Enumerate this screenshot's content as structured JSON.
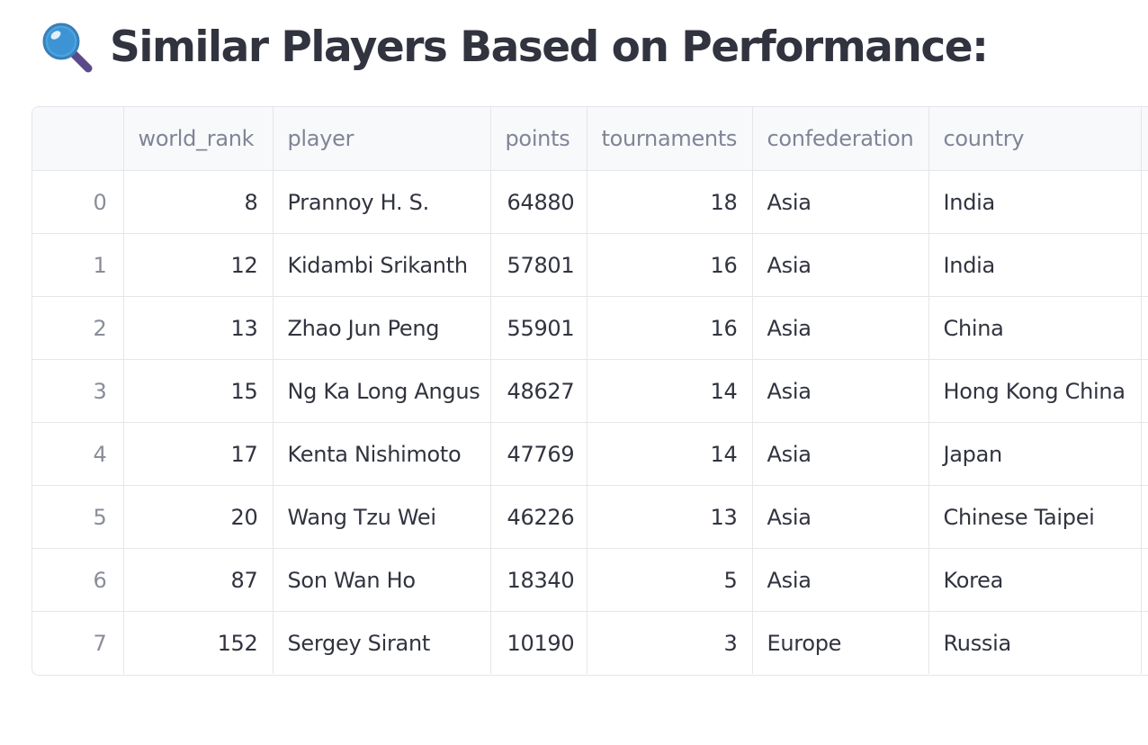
{
  "heading": {
    "icon": "magnifying-glass-icon",
    "title": "Similar Players Based on Performance:"
  },
  "table": {
    "columns": [
      "",
      "world_rank",
      "player",
      "points",
      "tournaments",
      "confederation",
      "country"
    ],
    "rows": [
      {
        "index": "0",
        "world_rank": "8",
        "player": "Prannoy H. S.",
        "points": "64880",
        "tournaments": "18",
        "confederation": "Asia",
        "country": "India"
      },
      {
        "index": "1",
        "world_rank": "12",
        "player": "Kidambi Srikanth",
        "points": "57801",
        "tournaments": "16",
        "confederation": "Asia",
        "country": "India"
      },
      {
        "index": "2",
        "world_rank": "13",
        "player": "Zhao Jun Peng",
        "points": "55901",
        "tournaments": "16",
        "confederation": "Asia",
        "country": "China"
      },
      {
        "index": "3",
        "world_rank": "15",
        "player": "Ng Ka Long Angus",
        "points": "48627",
        "tournaments": "14",
        "confederation": "Asia",
        "country": "Hong Kong China"
      },
      {
        "index": "4",
        "world_rank": "17",
        "player": "Kenta Nishimoto",
        "points": "47769",
        "tournaments": "14",
        "confederation": "Asia",
        "country": "Japan"
      },
      {
        "index": "5",
        "world_rank": "20",
        "player": "Wang Tzu Wei",
        "points": "46226",
        "tournaments": "13",
        "confederation": "Asia",
        "country": "Chinese Taipei"
      },
      {
        "index": "6",
        "world_rank": "87",
        "player": "Son Wan Ho",
        "points": "18340",
        "tournaments": "5",
        "confederation": "Asia",
        "country": "Korea"
      },
      {
        "index": "7",
        "world_rank": "152",
        "player": "Sergey Sirant",
        "points": "10190",
        "tournaments": "3",
        "confederation": "Europe",
        "country": "Russia"
      }
    ]
  },
  "colors": {
    "title": "#31333f",
    "header_text": "#808495",
    "header_bg": "#f8f9fb",
    "grid": "#e6e6ea",
    "icon_lens": "#4aa3df",
    "icon_handle": "#5b4a8a"
  }
}
